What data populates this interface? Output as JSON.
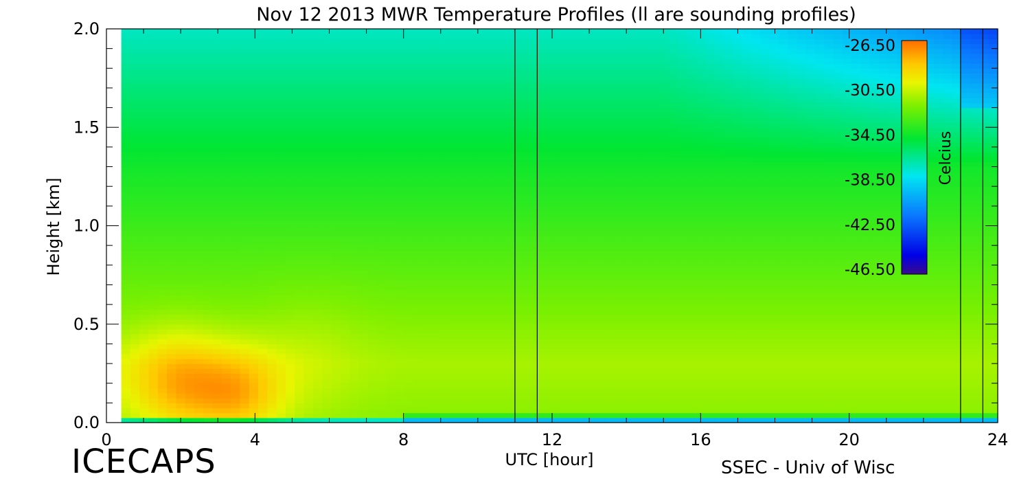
{
  "chart_data": {
    "type": "heatmap",
    "title": "Nov 12 2013 MWR Temperature Profiles (ll are sounding profiles)",
    "xlabel": "UTC [hour]",
    "ylabel": "Height [km]",
    "xlim": [
      0,
      24
    ],
    "ylim": [
      0,
      2.0
    ],
    "xticks": [
      0,
      4,
      8,
      12,
      16,
      20,
      24
    ],
    "xtick_labels": [
      "0",
      "4",
      "8",
      "12",
      "16",
      "20",
      "24"
    ],
    "yticks": [
      0,
      0.5,
      1.0,
      1.5,
      2.0
    ],
    "ytick_labels": [
      "0.0",
      "0.5",
      "1.0",
      "1.5",
      "2.0"
    ],
    "data_start_hour": 0.4,
    "data_end_hour": 24,
    "sounding_profile_hours": [
      11.0,
      11.6,
      23.0,
      23.6
    ],
    "colorbar": {
      "label": "Celcius",
      "min": -46.5,
      "max": -26.5,
      "tick_labels": [
        "-26.50",
        "-30.50",
        "-34.50",
        "-38.50",
        "-42.50",
        "-46.50"
      ],
      "tick_values": [
        -26.5,
        -30.5,
        -34.5,
        -38.5,
        -42.5,
        -46.5
      ]
    },
    "features": [
      {
        "description": "warm layer maximum",
        "hour": 3.5,
        "height_km": 0.15,
        "temp_c": -27.5
      },
      {
        "description": "warm layer secondary maximum",
        "hour": 2.0,
        "height_km": 0.2,
        "temp_c": -28.5
      },
      {
        "description": "cold air aloft late day",
        "hour": 24,
        "height_km": 2.0,
        "temp_c": -41.5
      }
    ]
  },
  "footer": {
    "logo": "ICECAPS",
    "credit": "SSEC - Univ of Wisc"
  }
}
